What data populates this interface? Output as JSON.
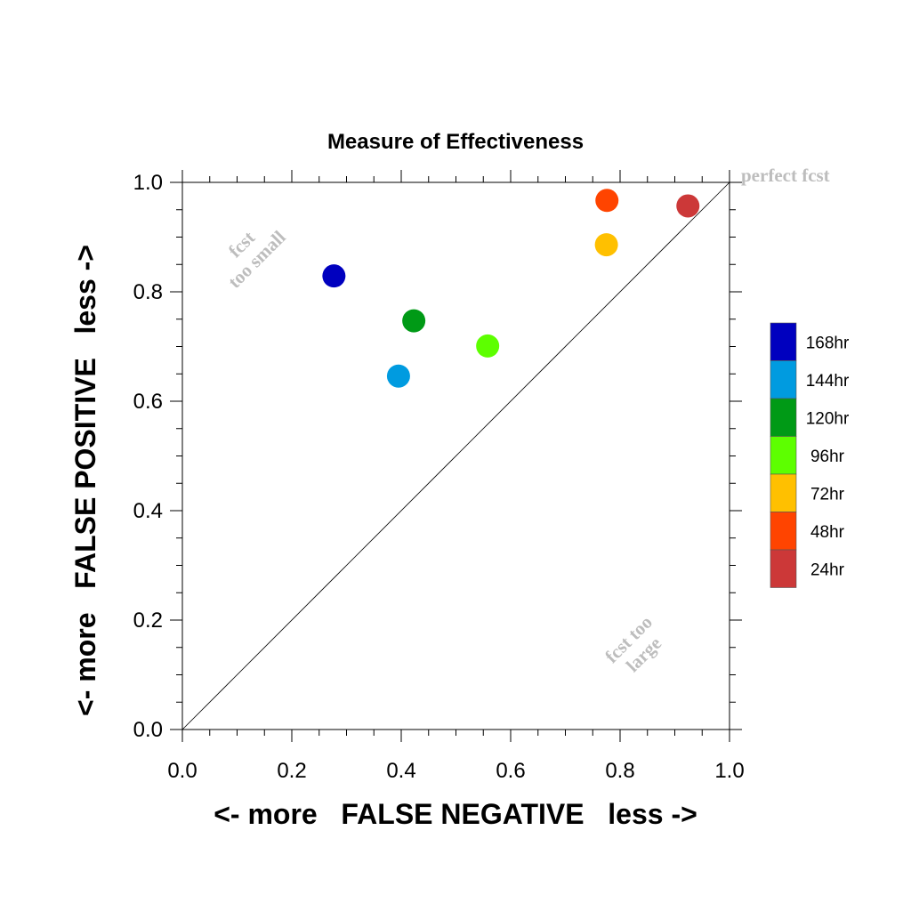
{
  "chart_data": {
    "type": "scatter",
    "title": "Measure of Effectiveness",
    "xlabel": "<- more   FALSE NEGATIVE   less ->",
    "ylabel": "<- more   FALSE POSITIVE   less ->",
    "xlim": [
      0.0,
      1.0
    ],
    "ylim": [
      0.0,
      1.0
    ],
    "x_ticks": [
      "0.0",
      "0.2",
      "0.4",
      "0.6",
      "0.8",
      "1.0"
    ],
    "y_ticks": [
      "0.0",
      "0.2",
      "0.4",
      "0.6",
      "0.8",
      "1.0"
    ],
    "grid": false,
    "diagonal_line": true,
    "annotations": {
      "perfect": "perfect fcst",
      "too_small_1": "fcst",
      "too_small_2": "too small",
      "too_large_1": "fcst too",
      "too_large_2": "large"
    },
    "legend_position": "right",
    "series": [
      {
        "name": "168hr",
        "color": "#0000bf",
        "x": 0.277,
        "y": 0.829
      },
      {
        "name": "144hr",
        "color": "#009be0",
        "x": 0.395,
        "y": 0.646
      },
      {
        "name": "120hr",
        "color": "#009a16",
        "x": 0.423,
        "y": 0.747
      },
      {
        "name": "96hr",
        "color": "#5dff00",
        "x": 0.558,
        "y": 0.701
      },
      {
        "name": "72hr",
        "color": "#ffc000",
        "x": 0.775,
        "y": 0.886
      },
      {
        "name": "48hr",
        "color": "#ff4400",
        "x": 0.776,
        "y": 0.967
      },
      {
        "name": "24hr",
        "color": "#cc3838",
        "x": 0.924,
        "y": 0.957
      }
    ]
  }
}
